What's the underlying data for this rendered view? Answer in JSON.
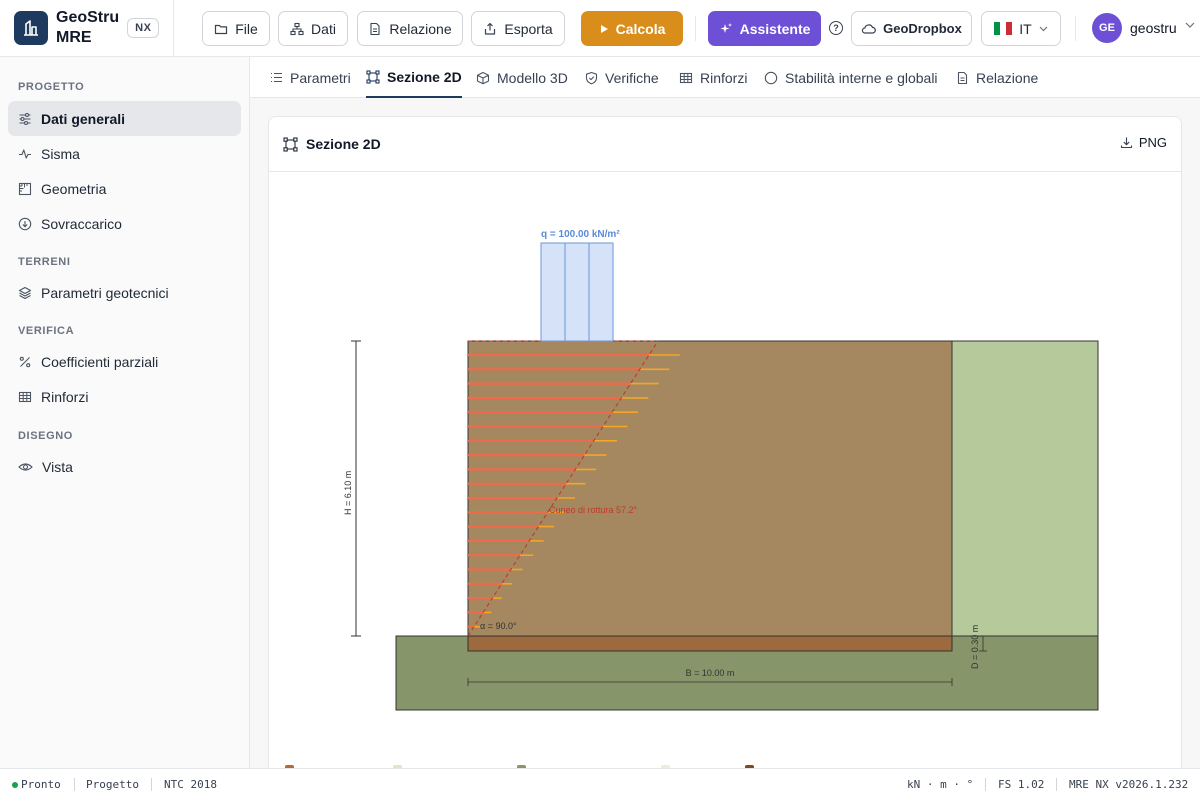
{
  "brand": {
    "name_line1": "GeoStru",
    "name_line2": "MRE",
    "badge": "NX"
  },
  "toolbar": {
    "file": "File",
    "dati": "Dati",
    "relazione": "Relazione",
    "esporta": "Esporta",
    "calcola": "Calcola",
    "assistente": "Assistente",
    "geodropbox": "GeoDropbox",
    "language": "IT",
    "help": "?"
  },
  "user": {
    "initials": "GE",
    "name": "geostru"
  },
  "sidebar": {
    "sections": [
      {
        "title": "PROGETTO",
        "items": [
          {
            "label": "Dati generali",
            "icon": "sliders-icon",
            "active": true
          },
          {
            "label": "Sisma",
            "icon": "activity-icon"
          },
          {
            "label": "Geometria",
            "icon": "ruler-icon"
          },
          {
            "label": "Sovraccarico",
            "icon": "arrow-down-circle-icon"
          }
        ]
      },
      {
        "title": "TERRENI",
        "items": [
          {
            "label": "Parametri geotecnici",
            "icon": "layers-icon"
          }
        ]
      },
      {
        "title": "VERIFICA",
        "items": [
          {
            "label": "Coefficienti parziali",
            "icon": "percent-icon"
          },
          {
            "label": "Rinforzi",
            "icon": "grid-icon"
          }
        ]
      },
      {
        "title": "DISEGNO",
        "items": [
          {
            "label": "Vista",
            "icon": "eye-icon"
          }
        ]
      }
    ]
  },
  "tabs": [
    {
      "label": "Parametri",
      "icon": "list-icon"
    },
    {
      "label": "Sezione 2D",
      "icon": "frame-icon",
      "active": true
    },
    {
      "label": "Modello 3D",
      "icon": "cube-icon"
    },
    {
      "label": "Verifiche",
      "icon": "shield-icon"
    },
    {
      "label": "Rinforzi",
      "icon": "grid-icon"
    },
    {
      "label": "Stabilità interne e globali",
      "icon": "circle-icon"
    },
    {
      "label": "Relazione",
      "icon": "document-icon"
    }
  ],
  "card": {
    "title": "Sezione 2D",
    "png_button": "PNG"
  },
  "section": {
    "load_label": "q = 100.00 kN/m²",
    "height_label": "H = 6.10 m",
    "wedge_label": "Cuneo di rottura 57.2°",
    "alpha_label": "α = 90.0°",
    "embed_label": "D = 0.30 m",
    "base_label": "B = 10.00 m",
    "height_m": 6.1,
    "base_m": 10.0,
    "embed_m": 0.3,
    "load_kN_m2": 100.0,
    "wedge_angle_deg": 57.2,
    "face_angle_deg": 90.0,
    "reinforcement_layers": 20,
    "colors": {
      "reinforced_fill": "#a5885f",
      "retained_fill": "#b5c99a",
      "foundation_fill": "#87956a",
      "embed_fill": "#9c6a3c",
      "load_fill": "#d6e2f7",
      "load_stroke": "#6a97db",
      "load_text": "#5b8bd6",
      "wedge_line": "#c0392b",
      "reinforcement": "#ee6a4a",
      "reinforcement_tip": "#f5a623",
      "wedge_text": "#c0392b"
    }
  },
  "status": {
    "ready": "Pronto",
    "project": "Progetto",
    "code": "NTC 2018",
    "units": "kN · m · °",
    "fs": "FS 1.02",
    "version": "MRE NX v2026.1.232"
  }
}
